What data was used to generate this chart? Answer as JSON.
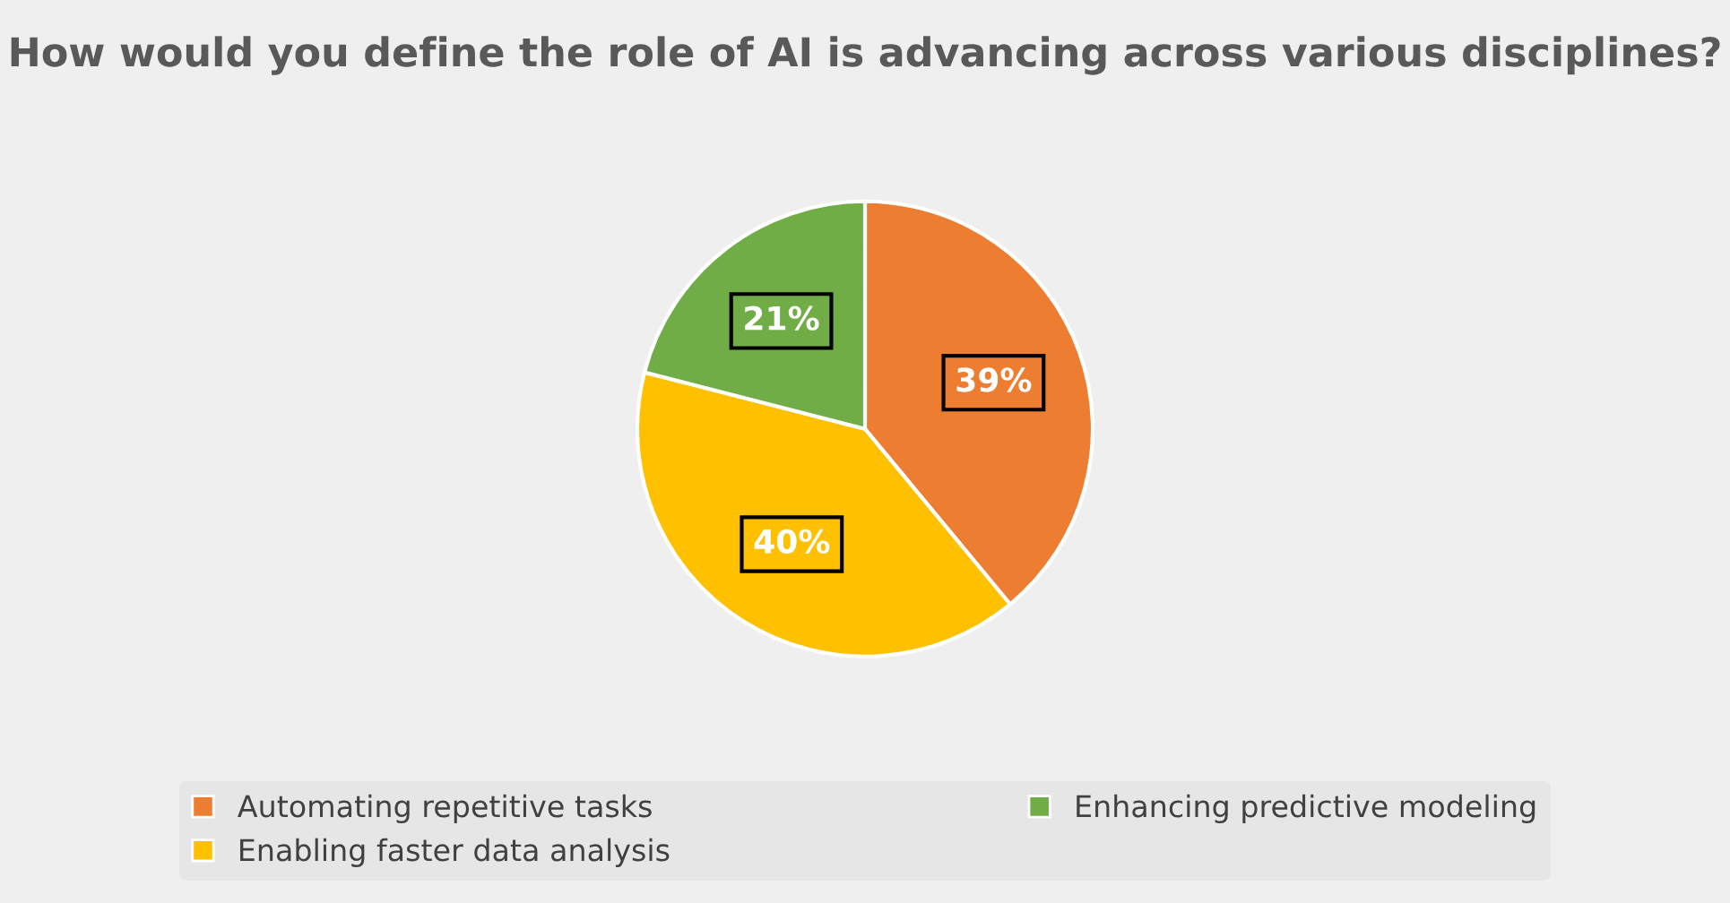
{
  "chart_data": {
    "type": "pie",
    "title": "How would you define the role of AI is advancing across various disciplines?",
    "categories": [
      "Automating repetitive tasks",
      "Enabling faster data analysis",
      "Enhancing predictive modeling"
    ],
    "values": [
      39,
      40,
      21
    ],
    "colors": [
      "#ed7d31",
      "#ffc000",
      "#70ad47"
    ],
    "value_labels": [
      "39%",
      "40%",
      "21%"
    ],
    "legend": "bottom"
  }
}
